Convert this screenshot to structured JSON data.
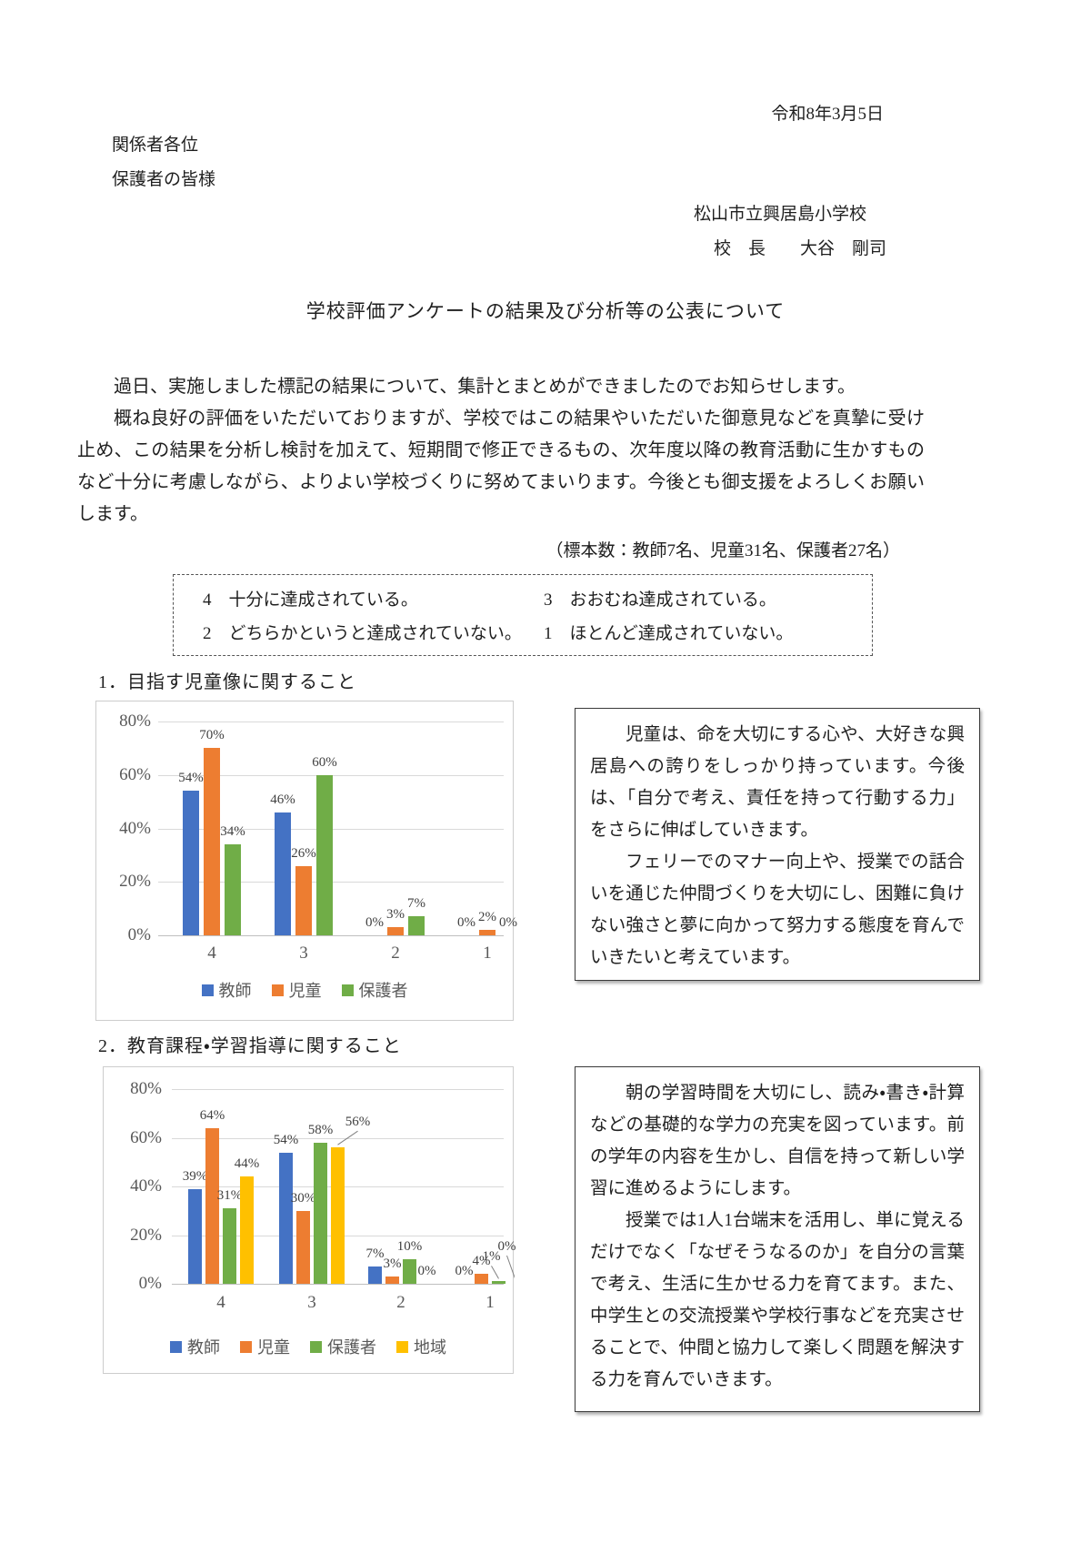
{
  "page": {
    "date": "令和8年3月5日",
    "recipient1": "関係者各位",
    "recipient2": "保護者の皆様",
    "school": "松山市立興居島小学校",
    "principal": "校　長　　大谷　剛司",
    "title": "学校評価アンケートの結果及び分析等の公表について",
    "para1": "過日、実施しました標記の結果について、集計とまとめができましたのでお知らせします。",
    "para2": "概ね良好の評価をいただいておりますが、学校ではこの結果やいただいた御意見などを真摯に受け止め、この結果を分析し検討を加えて、短期間で修正できるもの、次年度以降の教育活動に生かすものなど十分に考慮しながら、よりよい学校づくりに努めてまいります。今後とも御支援をよろしくお願いします。",
    "sample_note": "（標本数：教師7名、児童31名、保護者27名）"
  },
  "scale_box": {
    "items": [
      "4　十分に達成されている。",
      "3　おおむね達成されている。",
      "2　どちらかというと達成されていない。",
      "1　ほとんど達成されていない。"
    ]
  },
  "sections": [
    {
      "heading": "1．目指す児童像に関すること",
      "comment": [
        "児童は、命を大切にする心や、大好きな興居島への誇りをしっかり持っています。今後は、「自分で考え、責任を持って行動する力」をさらに伸ばしていきます。",
        "フェリーでのマナー向上や、授業での話合いを通じた仲間づくりを大切にし、困難に負けない強さと夢に向かって努力する態度を育んでいきたいと考えています。"
      ]
    },
    {
      "heading": "2．教育課程・学習指導に関すること",
      "comment": [
        "朝の学習時間を大切にし、読み・書き・計算などの基礎的な学力の充実を図っています。前の学年の内容を生かし、自信を持って新しい学習に進めるようにします。",
        "授業では1人1台端末を活用し、単に覚えるだけでなく「なぜそうなるのか」を自分の言葉で考え、生活に生かせる力を育てます。また、中学生との交流授業や学校行事などを充実させることで、仲間と協力して楽しく問題を解決する力を育んでいきます。"
      ]
    }
  ],
  "chart_data": [
    {
      "type": "bar",
      "title": "目指す児童像に関すること",
      "categories": [
        "4",
        "3",
        "2",
        "1"
      ],
      "series": [
        {
          "name": "教師",
          "color": "#4472C4",
          "values": [
            54,
            46,
            0,
            0
          ]
        },
        {
          "name": "児童",
          "color": "#ED7D31",
          "values": [
            70,
            26,
            3,
            2
          ]
        },
        {
          "name": "保護者",
          "color": "#70AD47",
          "values": [
            34,
            60,
            7,
            0
          ]
        }
      ],
      "xlabel": "",
      "ylabel": "",
      "ylim": [
        0,
        80
      ],
      "ytick_step": 20,
      "ytick_format": "percent",
      "grid": true,
      "legend_position": "bottom",
      "data_labels": true
    },
    {
      "type": "bar",
      "title": "教育課程・学習指導に関すること",
      "categories": [
        "4",
        "3",
        "2",
        "1"
      ],
      "series": [
        {
          "name": "教師",
          "color": "#4472C4",
          "values": [
            39,
            54,
            7,
            0
          ]
        },
        {
          "name": "児童",
          "color": "#ED7D31",
          "values": [
            64,
            30,
            3,
            4
          ]
        },
        {
          "name": "保護者",
          "color": "#70AD47",
          "values": [
            31,
            58,
            10,
            1
          ]
        },
        {
          "name": "地域",
          "color": "#FFC000",
          "values": [
            44,
            56,
            0,
            0
          ]
        }
      ],
      "xlabel": "",
      "ylabel": "",
      "ylim": [
        0,
        80
      ],
      "ytick_step": 20,
      "ytick_format": "percent",
      "grid": true,
      "legend_position": "bottom",
      "data_labels": true
    }
  ]
}
